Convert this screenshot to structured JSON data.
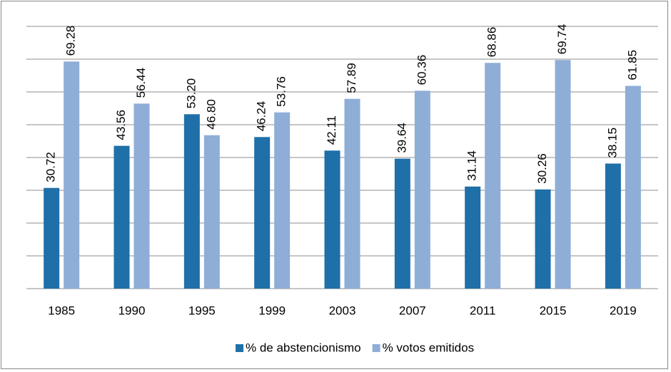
{
  "chart_data": {
    "type": "bar",
    "categories": [
      "1985",
      "1990",
      "1995",
      "1999",
      "2003",
      "2007",
      "2011",
      "2015",
      "2019"
    ],
    "series": [
      {
        "name": "% de abstencionismo",
        "color": "#1f6fa9",
        "values": [
          30.72,
          43.56,
          53.2,
          46.24,
          42.11,
          39.64,
          31.14,
          30.26,
          38.15
        ],
        "value_labels": [
          "30.72",
          "43.56",
          "53.20",
          "46.24",
          "42.11",
          "39.64",
          "31.14",
          "30.26",
          "38.15"
        ]
      },
      {
        "name": "% votos emitidos",
        "color": "#8eaed7",
        "values": [
          69.28,
          56.44,
          46.8,
          53.76,
          57.89,
          60.36,
          68.86,
          69.74,
          61.85
        ],
        "value_labels": [
          "69.28",
          "56.44",
          "46.80",
          "53.76",
          "57.89",
          "60.36",
          "68.86",
          "69.74",
          "61.85"
        ]
      }
    ],
    "ylim": [
      0,
      80
    ],
    "yticks": [
      0,
      10,
      20,
      30,
      40,
      50,
      60,
      70,
      80
    ],
    "grid": true,
    "legend": "bottom"
  }
}
